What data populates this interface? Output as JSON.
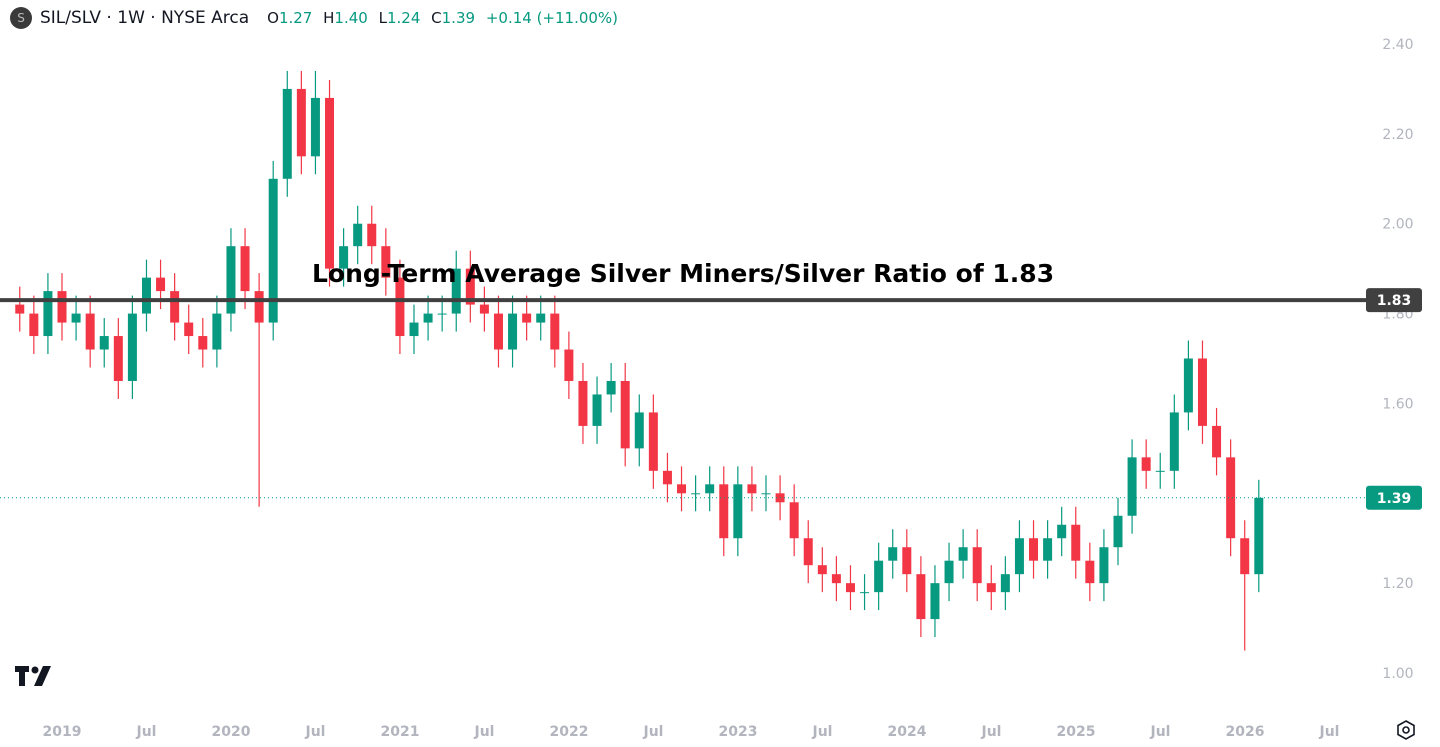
{
  "header": {
    "symbol": "SIL/SLV",
    "interval": "1W",
    "exchange": "NYSE Arca",
    "open_label": "O",
    "open": "1.27",
    "high_label": "H",
    "high": "1.40",
    "low_label": "L",
    "low": "1.24",
    "close_label": "C",
    "close": "1.39",
    "change": "+0.14 (+11.00%)",
    "logo_letter": "S"
  },
  "colors": {
    "up": "#089981",
    "down": "#F23645",
    "average_line": "#404040"
  },
  "chart_data": {
    "type": "candlestick",
    "title": "",
    "annotation": "Long-Term Average Silver Miners/Silver Ratio of 1.83",
    "horizontal_line": {
      "value": 1.83,
      "label": "1.83"
    },
    "last_price": {
      "value": 1.39,
      "label": "1.39"
    },
    "ylim": [
      0.97,
      2.45
    ],
    "y_ticks": [
      "2.40",
      "2.20",
      "2.00",
      "1.80",
      "1.60",
      "1.20",
      "1.00"
    ],
    "y_tick_values": [
      2.4,
      2.2,
      2.0,
      1.8,
      1.6,
      1.2,
      1.0
    ],
    "x_ticks": [
      "2019",
      "Jul",
      "2020",
      "Jul",
      "2021",
      "Jul",
      "2022",
      "Jul",
      "2023",
      "Jul",
      "2024",
      "Jul",
      "2025",
      "Jul",
      "2026",
      "Jul"
    ],
    "start_month": "2018-10",
    "monthly_close": [
      1.8,
      1.75,
      1.85,
      1.78,
      1.8,
      1.72,
      1.75,
      1.65,
      1.8,
      1.88,
      1.85,
      1.78,
      1.75,
      1.72,
      1.8,
      1.95,
      1.85,
      1.78,
      2.1,
      2.3,
      2.15,
      2.28,
      1.9,
      1.95,
      2.0,
      1.95,
      1.88,
      1.75,
      1.78,
      1.8,
      1.8,
      1.9,
      1.82,
      1.8,
      1.72,
      1.8,
      1.78,
      1.8,
      1.72,
      1.65,
      1.55,
      1.62,
      1.65,
      1.5,
      1.58,
      1.45,
      1.42,
      1.4,
      1.4,
      1.42,
      1.3,
      1.42,
      1.4,
      1.4,
      1.38,
      1.3,
      1.24,
      1.22,
      1.2,
      1.18,
      1.18,
      1.25,
      1.28,
      1.22,
      1.12,
      1.2,
      1.25,
      1.28,
      1.2,
      1.18,
      1.22,
      1.3,
      1.25,
      1.3,
      1.33,
      1.25,
      1.2,
      1.28,
      1.35,
      1.48,
      1.45,
      1.45,
      1.58,
      1.7,
      1.55,
      1.48,
      1.3,
      1.22,
      1.39
    ],
    "notable_extremes": {
      "2020-03_low": 1.37,
      "2020-07_high": 2.34,
      "2025-09_high": 1.74,
      "2026-01_low": 1.05
    }
  }
}
